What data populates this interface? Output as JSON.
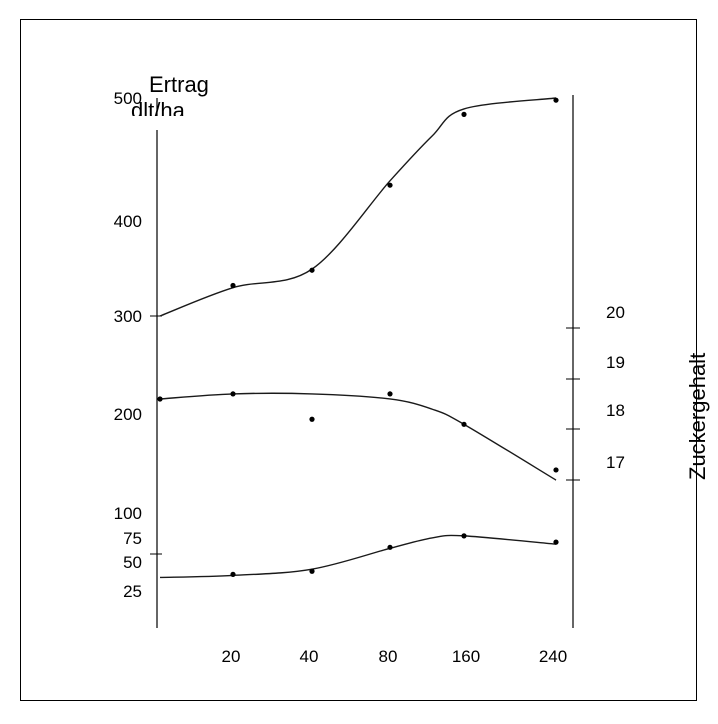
{
  "chart_data": {
    "type": "line",
    "y_axis_left": {
      "title": "Ertrag",
      "unit": "dlt/ha",
      "ticks": [
        "500",
        "400",
        "300",
        "200",
        "100",
        "75",
        "50",
        "25"
      ]
    },
    "y_axis_right": {
      "title": "Zuckergehalt",
      "ticks": [
        "20",
        "19",
        "18",
        "17"
      ]
    },
    "x_axis": {
      "ticks": [
        "20",
        "40",
        "80",
        "160",
        "240"
      ]
    },
    "series": [
      {
        "x": [
          0,
          20,
          40,
          80,
          120,
          160,
          240
        ],
        "y": [
          300,
          326,
          343,
          424,
          465,
          490,
          500
        ],
        "points": [
          [
            20,
            328
          ],
          [
            40,
            342
          ],
          [
            80,
            420
          ],
          [
            160,
            485
          ],
          [
            240,
            498
          ]
        ]
      },
      {
        "x": [
          0,
          20,
          40,
          80,
          120,
          160,
          240
        ],
        "y": [
          18.6,
          18.7,
          18.7,
          18.6,
          18.4,
          18.1,
          17.0
        ],
        "points": [
          [
            0,
            18.6
          ],
          [
            20,
            18.7
          ],
          [
            40,
            18.2
          ],
          [
            80,
            18.7
          ],
          [
            160,
            18.1
          ],
          [
            240,
            17.2
          ]
        ]
      },
      {
        "x": [
          0,
          20,
          40,
          80,
          120,
          160,
          240
        ],
        "y": [
          38,
          40,
          46,
          66,
          76,
          78,
          70
        ],
        "points": [
          [
            20,
            41
          ],
          [
            40,
            44
          ],
          [
            80,
            67
          ],
          [
            160,
            78
          ],
          [
            240,
            72
          ]
        ]
      }
    ],
    "grid": false,
    "legend": "none"
  }
}
